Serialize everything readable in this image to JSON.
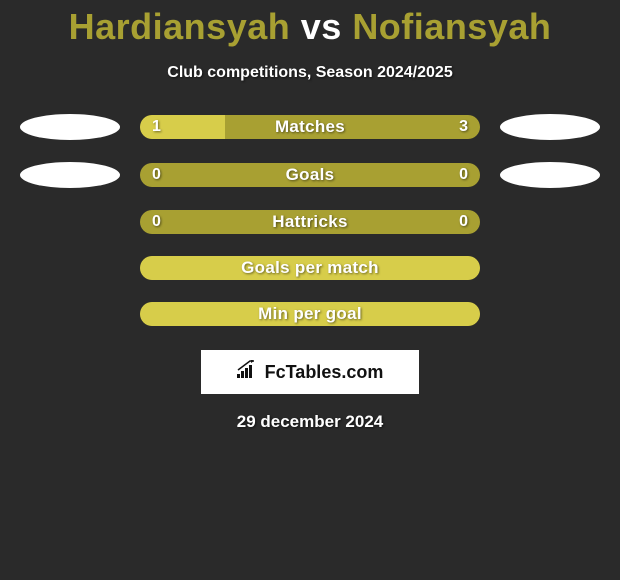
{
  "background_color": "#2a2a2a",
  "title": {
    "prefix": "Hardiansyah",
    "vs": "vs",
    "suffix": "Nofiansyah",
    "prefix_color": "#a8a032",
    "vs_color": "#ffffff",
    "suffix_color": "#a8a032",
    "fontsize": 36
  },
  "subtitle": {
    "text": "Club competitions, Season 2024/2025",
    "color": "#ffffff",
    "fontsize": 16
  },
  "bar_track_width": 340,
  "stats": [
    {
      "label": "Matches",
      "left_value": "1",
      "right_value": "3",
      "left_fill_pct": 25,
      "show_ellipses": true,
      "track_color": "#a8a032",
      "fill_color": "#d7cd4a",
      "text_color": "#ffffff"
    },
    {
      "label": "Goals",
      "left_value": "0",
      "right_value": "0",
      "left_fill_pct": 0,
      "show_ellipses": true,
      "track_color": "#a8a032",
      "fill_color": "#d7cd4a",
      "text_color": "#ffffff"
    },
    {
      "label": "Hattricks",
      "left_value": "0",
      "right_value": "0",
      "left_fill_pct": 0,
      "show_ellipses": false,
      "track_color": "#a8a032",
      "fill_color": "#d7cd4a",
      "text_color": "#ffffff"
    },
    {
      "label": "Goals per match",
      "left_value": "",
      "right_value": "",
      "left_fill_pct": 100,
      "show_ellipses": false,
      "track_color": "#a8a032",
      "fill_color": "#d7cd4a",
      "text_color": "#ffffff"
    },
    {
      "label": "Min per goal",
      "left_value": "",
      "right_value": "",
      "left_fill_pct": 100,
      "show_ellipses": false,
      "track_color": "#a8a032",
      "fill_color": "#d7cd4a",
      "text_color": "#ffffff"
    }
  ],
  "logo": {
    "text": "FcTables.com",
    "box_bg": "#ffffff",
    "text_color": "#111111",
    "icon_color": "#111111"
  },
  "date": {
    "text": "29 december 2024",
    "color": "#ffffff",
    "fontsize": 17
  }
}
